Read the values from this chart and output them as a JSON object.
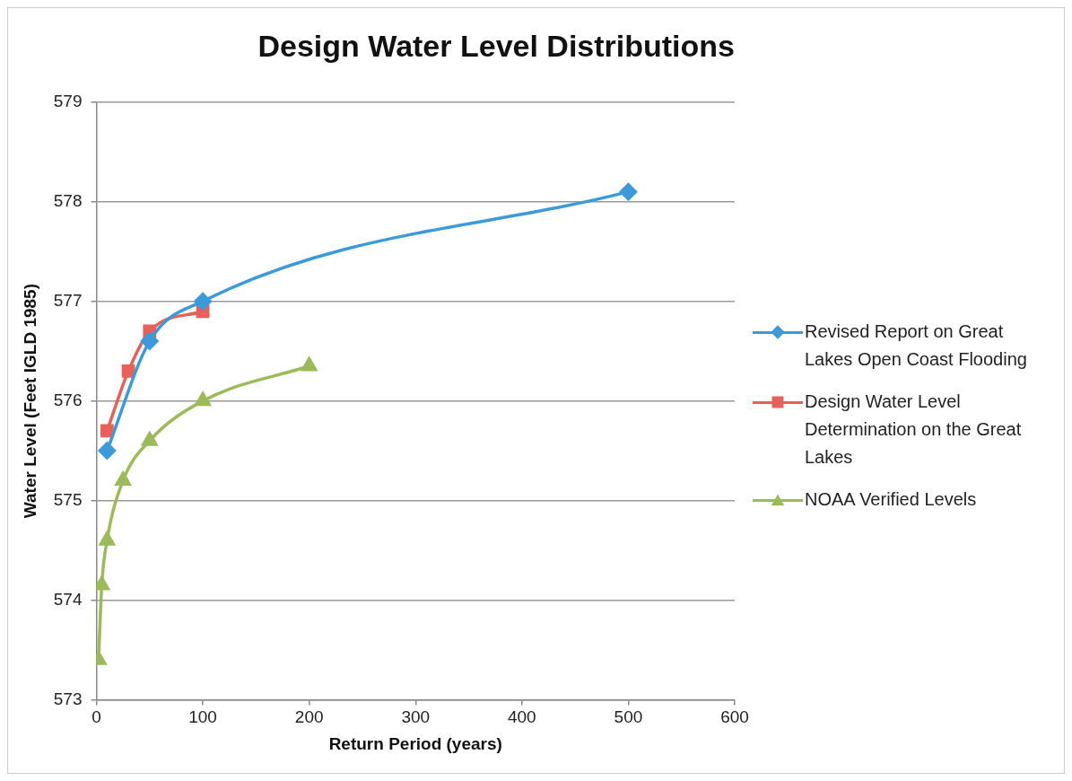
{
  "chart_data": {
    "type": "line",
    "title": "Design Water Level Distributions",
    "xlabel": "Return Period (years)",
    "ylabel": "Water Level (Feet IGLD 1985)",
    "xlim": [
      0,
      600
    ],
    "xticks": [
      0,
      100,
      200,
      300,
      400,
      500,
      600
    ],
    "ylim": [
      573,
      579
    ],
    "yticks": [
      573,
      574,
      575,
      576,
      577,
      578,
      579
    ],
    "grid": "y",
    "legend": "right",
    "series": [
      {
        "name": "Revised Report on Great Lakes Open Coast Flooding",
        "color": "#3d9ad9",
        "marker": "diamond",
        "x": [
          10,
          50,
          100,
          500
        ],
        "values": [
          575.5,
          576.6,
          577.0,
          578.1
        ]
      },
      {
        "name": "Design Water Level Determination on the Great Lakes",
        "color": "#e8605a",
        "marker": "square",
        "x": [
          10,
          30,
          50,
          100
        ],
        "values": [
          575.7,
          576.3,
          576.7,
          576.9
        ]
      },
      {
        "name": "NOAA Verified Levels",
        "color": "#9bbb59",
        "marker": "triangle",
        "x": [
          2,
          5,
          10,
          25,
          50,
          100,
          200
        ],
        "values": [
          573.4,
          574.15,
          574.6,
          575.2,
          575.6,
          576.0,
          576.35
        ]
      }
    ]
  }
}
